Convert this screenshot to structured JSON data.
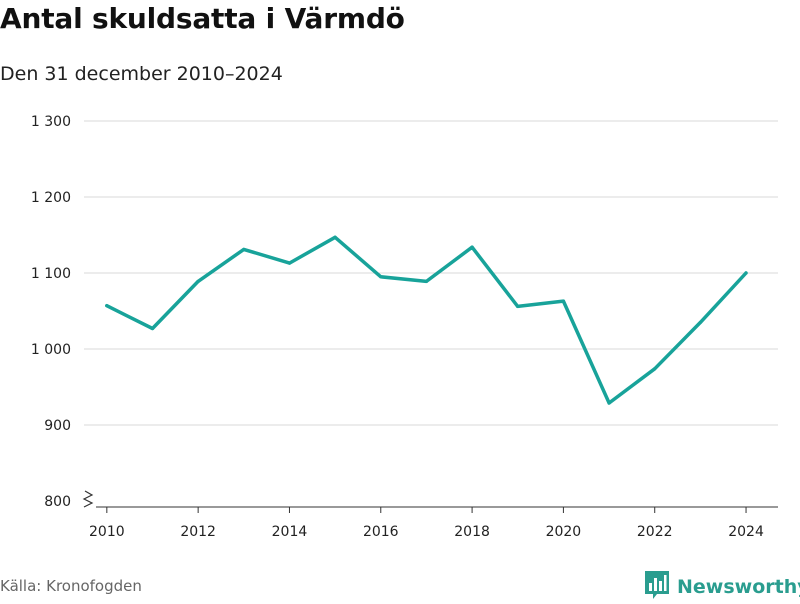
{
  "header": {
    "title": "Antal skuldsatta i Värmdö",
    "subtitle": "Den 31 december 2010–2024"
  },
  "footer": {
    "source": "Källa: Kronofogden",
    "brand": "Newsworthy",
    "logo_icon": "bar-chart-flag-icon"
  },
  "colors": {
    "line": "#18a39a",
    "grid": "#d9d9d9",
    "axis": "#333333",
    "brand": "#2a9d8f"
  },
  "chart_data": {
    "type": "line",
    "title": "Antal skuldsatta i Värmdö",
    "subtitle": "Den 31 december 2010–2024",
    "xlabel": "",
    "ylabel": "",
    "x": [
      2010,
      2011,
      2012,
      2013,
      2014,
      2015,
      2016,
      2017,
      2018,
      2019,
      2020,
      2021,
      2022,
      2023,
      2024
    ],
    "series": [
      {
        "name": "Antal skuldsatta",
        "values": [
          1057,
          1027,
          1089,
          1131,
          1113,
          1147,
          1095,
          1089,
          1134,
          1056,
          1063,
          929,
          974,
          1035,
          1100
        ]
      }
    ],
    "xlim": [
      2009.5,
      2024.7
    ],
    "ylim": [
      800,
      1300
    ],
    "x_ticks": [
      2010,
      2012,
      2014,
      2016,
      2018,
      2020,
      2022,
      2024
    ],
    "x_tick_labels": [
      "2010",
      "2012",
      "2014",
      "2016",
      "2018",
      "2020",
      "2022",
      "2024"
    ],
    "y_ticks": [
      800,
      900,
      1000,
      1100,
      1200,
      1300
    ],
    "y_tick_labels": [
      "800",
      "900",
      "1 000",
      "1 100",
      "1 200",
      "1 300"
    ],
    "y_axis_break": true,
    "grid": true,
    "legend": "none"
  }
}
